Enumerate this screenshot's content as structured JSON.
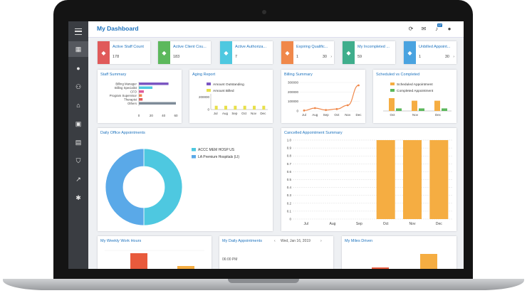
{
  "header": {
    "title": "My Dashboard",
    "notification_count": "17"
  },
  "kpis": [
    {
      "label": "Active Staff Count",
      "value": "178",
      "color": "#e05a5a",
      "icon": "user-icon"
    },
    {
      "label": "Active Client Cou...",
      "value": "183",
      "color": "#5cb85c",
      "icon": "group-icon"
    },
    {
      "label": "Active Authoriza...",
      "value": "7",
      "color": "#4ec8e0",
      "icon": "key-icon"
    },
    {
      "label": "Expiring Qualific...",
      "value": "1",
      "value2": "30",
      "color": "#f0884a",
      "icon": "graduation-cap-icon"
    },
    {
      "label": "My Incompleted ...",
      "value": "59",
      "color": "#3fae8c",
      "icon": "calendar-icon"
    },
    {
      "label": "Unbilled Appoint...",
      "value": "1",
      "value2": "30",
      "color": "#4aa3e0",
      "icon": "invoice-icon"
    }
  ],
  "staff_summary": {
    "title": "Staff Summary",
    "chart_data": {
      "type": "bar",
      "orientation": "horizontal",
      "categories": [
        "Billing Manager",
        "Billing Specialist",
        "CFO",
        "Program Supervisor",
        "Therapist",
        "Others"
      ],
      "values": [
        48,
        22,
        8,
        5,
        6,
        60
      ],
      "colors": [
        "#7b56c2",
        "#4ec8e0",
        "#e05a9a",
        "#f0884a",
        "#e05a5a",
        "#7f8c99"
      ],
      "xticks": [
        "0",
        "20",
        "40",
        "60"
      ],
      "xlim": [
        0,
        60
      ]
    }
  },
  "aging_report": {
    "title": "Aging Report",
    "chart_data": {
      "type": "bar",
      "categories": [
        "Jul",
        "Aug",
        "Sep",
        "Oct",
        "Nov",
        "Dec"
      ],
      "series": [
        {
          "name": "Amount Outstanding",
          "color": "#7b56c2",
          "values": [
            0,
            0,
            0,
            0,
            0,
            0
          ]
        },
        {
          "name": "Amount Billed",
          "color": "#e8e04a",
          "values": [
            40000,
            40000,
            40000,
            40000,
            40000,
            40000
          ]
        }
      ],
      "yticks": [
        "200000",
        "0"
      ],
      "ylim": [
        0,
        250000
      ]
    }
  },
  "billing_summary": {
    "title": "Billing Summary",
    "chart_data": {
      "type": "line",
      "categories": [
        "Jul",
        "Aug",
        "Sep",
        "Oct",
        "Nov",
        "Dec"
      ],
      "values": [
        5000,
        30000,
        10000,
        20000,
        60000,
        270000
      ],
      "color": "#f0884a",
      "yticks": [
        "300000",
        "200000",
        "100000",
        "0"
      ],
      "ylim": [
        0,
        300000
      ]
    }
  },
  "scheduled_completed": {
    "title": "Scheduled vs Completed",
    "chart_data": {
      "type": "bar",
      "categories": [
        "Oct",
        "Nov",
        "Dec"
      ],
      "series": [
        {
          "name": "Scheduled Appointment",
          "color": "#f5ad42",
          "values": [
            5,
            4,
            4
          ]
        },
        {
          "name": "Completed Appointment",
          "color": "#5cb85c",
          "values": [
            1,
            1,
            1
          ]
        }
      ],
      "ylim": [
        0,
        6
      ]
    }
  },
  "daily_office": {
    "title": "Daily Office Appointments",
    "chart_data": {
      "type": "pie",
      "labels": [
        "ACCC MEM HOSP US",
        "LA Premium Hospitals (LI)"
      ],
      "values": [
        50,
        50
      ],
      "colors": [
        "#4ec8e0",
        "#5aa9e8"
      ]
    }
  },
  "cancelled": {
    "title": "Cancelled Appointment Summary",
    "chart_data": {
      "type": "bar",
      "categories": [
        "Jul",
        "Aug",
        "Sep",
        "Oct",
        "Nov",
        "Dec"
      ],
      "values": [
        0,
        0,
        0,
        1,
        1,
        1
      ],
      "color": "#f5ad42",
      "yticks": [
        "1.0",
        "0.9",
        "0.8",
        "0.7",
        "0.6",
        "0.5",
        "0.4",
        "0.3",
        "0.2",
        "0.1",
        "0"
      ],
      "ylim": [
        0,
        1
      ]
    }
  },
  "weekly_hours": {
    "title": "My Weekly Work Hours"
  },
  "daily_appointments": {
    "title": "My Daily Appointments",
    "date": "Wed, Jan 16, 2019",
    "prev": "‹",
    "next": "›",
    "time": "06:00 PM"
  },
  "miles_driven": {
    "title": "My Miles Driven"
  }
}
